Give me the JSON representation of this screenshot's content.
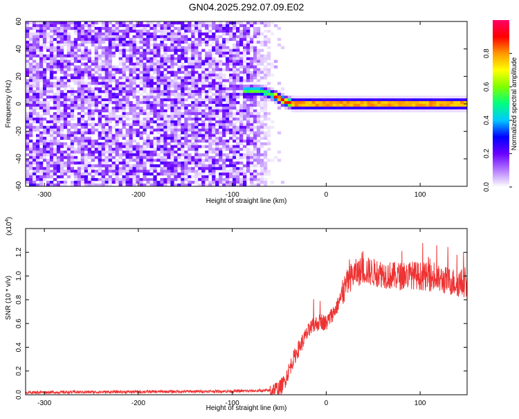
{
  "title": "GN04.2025.292.07.09.E02",
  "chart_data": [
    {
      "type": "heatmap",
      "xlabel": "Height of straight line (km)",
      "ylabel": "Frequency (Hz)",
      "xlim": [
        -320,
        150
      ],
      "ylim": [
        -60,
        60
      ],
      "xticks": [
        -300,
        -200,
        -100,
        0,
        100
      ],
      "yticks": [
        -60,
        -40,
        -20,
        0,
        20,
        40,
        60
      ],
      "noise_region_x": [
        -320,
        -55
      ],
      "signal_ridge": {
        "x": [
          -90,
          -70,
          -55,
          -45,
          -35,
          0,
          50,
          100,
          150
        ],
        "y": [
          9.5,
          9.5,
          6,
          2,
          0,
          0,
          0,
          0,
          0
        ]
      },
      "colorbar": {
        "label": "Normalized spectral amplitude",
        "range": [
          0,
          1
        ],
        "ticks": [
          0.0,
          0.2,
          0.4,
          0.6,
          0.8
        ],
        "tick_labels": [
          "0.0",
          "0.2",
          "0.4",
          "0.6",
          "0.8"
        ],
        "colors": [
          "#ffffff",
          "#b57cff",
          "#6a00ff",
          "#0000ff",
          "#00c8ff",
          "#00ff7f",
          "#7fff00",
          "#ffff00",
          "#ff9900",
          "#ff0000",
          "#ff0066"
        ]
      }
    },
    {
      "type": "line",
      "xlabel": "Height of straight line (km)",
      "ylabel": "SNR (10 * v/v)",
      "scale_label": "(x10",
      "scale_exp": "4",
      "scale_close": ")",
      "xlim": [
        -320,
        150
      ],
      "ylim": [
        0,
        1.4
      ],
      "xticks": [
        -300,
        -200,
        -100,
        0,
        100
      ],
      "yticks": [
        0.0,
        0.2,
        0.4,
        0.6,
        0.8,
        1.0,
        1.2
      ],
      "ytick_labels": [
        "0.0",
        "0.2",
        "0.4",
        "0.6",
        "0.8",
        "1.0",
        "1.2"
      ],
      "series": [
        {
          "color": "#ee3333",
          "x": [
            -320,
            -200,
            -100,
            -60,
            -50,
            -45,
            -40,
            -35,
            -30,
            -25,
            -20,
            -15,
            -10,
            -5,
            0,
            5,
            10,
            15,
            20,
            25,
            30,
            40,
            50,
            60,
            70,
            80,
            90,
            100,
            110,
            120,
            130,
            140,
            150
          ],
          "y": [
            0.02,
            0.025,
            0.03,
            0.035,
            0.05,
            0.1,
            0.2,
            0.3,
            0.38,
            0.45,
            0.52,
            0.57,
            0.6,
            0.62,
            0.6,
            0.66,
            0.72,
            0.8,
            0.9,
            0.98,
            1.02,
            1.05,
            1.03,
            1.02,
            1.0,
            1.0,
            1.01,
            1.0,
            0.99,
            0.97,
            0.96,
            0.94,
            0.94
          ]
        }
      ]
    }
  ]
}
